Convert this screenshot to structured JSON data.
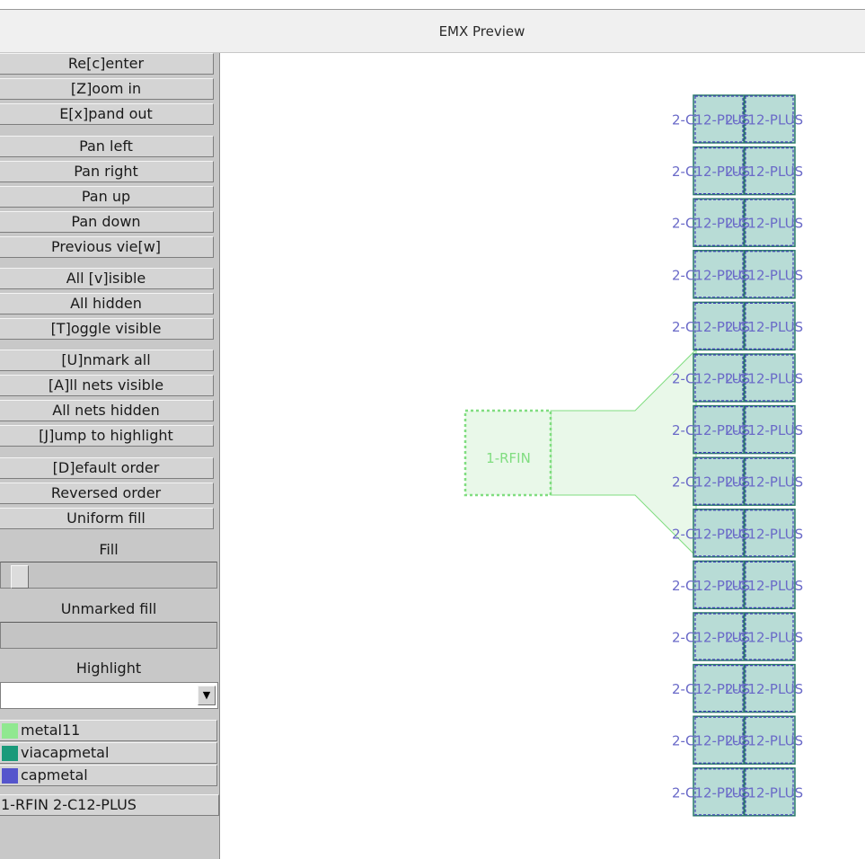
{
  "window": {
    "title": "EMX Preview"
  },
  "view_buttons": [
    "Re[c]enter",
    "[Z]oom in",
    "E[x]pand out"
  ],
  "pan_buttons": [
    "Pan left",
    "Pan right",
    "Pan up",
    "Pan down",
    "Previous vie[w]"
  ],
  "visibility_buttons": [
    "All [v]isible",
    "All hidden",
    "[T]oggle visible"
  ],
  "net_buttons": [
    "[U]nmark all",
    "[A]ll nets visible",
    "All nets hidden",
    "[J]ump to highlight"
  ],
  "order_buttons": [
    "[D]efault order",
    "Reversed order",
    "Uniform fill"
  ],
  "fill": {
    "label": "Fill",
    "level": 0.05
  },
  "unmarked_fill": {
    "label": "Unmarked fill"
  },
  "highlight": {
    "label": "Highlight",
    "value": ""
  },
  "layers": [
    {
      "name": "metal11",
      "color": "#90e890"
    },
    {
      "name": "viacapmetal",
      "color": "#1a9a7a"
    },
    {
      "name": "capmetal",
      "color": "#5555cc"
    }
  ],
  "net_list": "1-RFIN 2-C12-PLUS",
  "canvas": {
    "rfin_label": "1-RFIN",
    "cap_label": "2-C12-PLUS",
    "cap_row_count": 14,
    "colors": {
      "metal": "#80dd80",
      "metal_fill": "#e9f8e9",
      "via": "#2a7a6a",
      "cap_fill": "#b8dcd6",
      "cap_outline": "#4040b8",
      "cap_text": "#6a6ac8",
      "rfin_text": "#80dd80"
    }
  }
}
